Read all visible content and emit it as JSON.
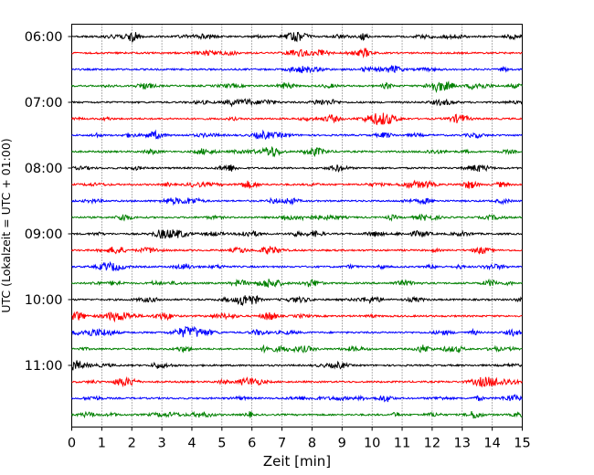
{
  "chart_data": {
    "type": "line",
    "chart_kind": "helicorder",
    "xlabel": "Zeit  [min]",
    "ylabel": "UTC (Lokalzeit = UTC + 01:00)",
    "xlim": [
      0,
      15
    ],
    "x_ticks": [
      "0",
      "1",
      "2",
      "3",
      "4",
      "5",
      "6",
      "7",
      "8",
      "9",
      "10",
      "11",
      "12",
      "13",
      "14",
      "15"
    ],
    "y_ticks": [
      "06:00",
      "07:00",
      "08:00",
      "09:00",
      "10:00",
      "11:00"
    ],
    "start_time": "06:00",
    "trace_minutes": 15,
    "trace_count": 24,
    "trace_colors": [
      "#000000",
      "#ff0000",
      "#0000ff",
      "#008000"
    ],
    "grid": {
      "x": "dotted-vertical",
      "y": false
    },
    "legend": "none"
  }
}
